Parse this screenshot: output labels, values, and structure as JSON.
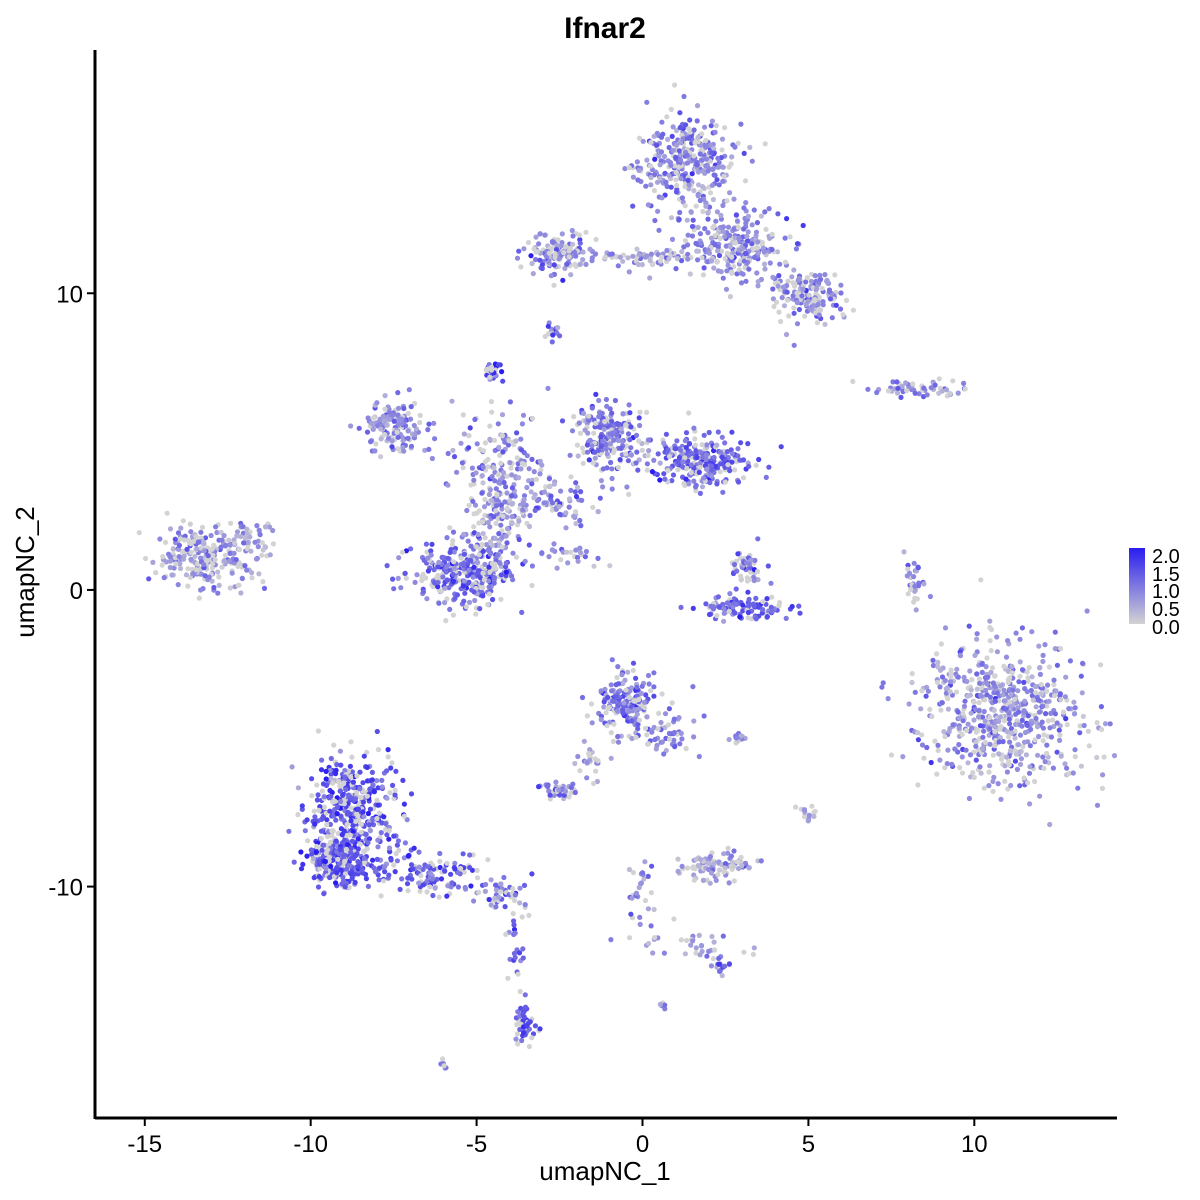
{
  "chart_data": {
    "type": "scatter",
    "title": "Ifnar2",
    "xlabel": "umapNC_1",
    "ylabel": "umapNC_2",
    "xlim": [
      -16.5,
      14.3
    ],
    "ylim": [
      -17.8,
      18.2
    ],
    "xticks": [
      -15,
      -10,
      -5,
      0,
      5,
      10
    ],
    "xtick_labels": [
      "-15",
      "-10",
      "-5",
      "0",
      "5",
      "10"
    ],
    "yticks": [
      -10,
      0,
      10
    ],
    "ytick_labels": [
      "-10",
      "0",
      "10"
    ],
    "grid": false,
    "legend": {
      "position": "right",
      "type": "colorbar",
      "min": 0.0,
      "max": 2.0,
      "labels": [
        "2.0",
        "1.5",
        "1.0",
        "0.5",
        "0.0"
      ],
      "low_color": "#d3d3d3",
      "high_color": "#2a1df0"
    },
    "point_color_low": "#d3d3d3",
    "point_color_high": "#2a1df0",
    "clusters": [
      {
        "x": 1.3,
        "y": 14.4,
        "count": 330,
        "sx": 0.95,
        "sy": 1.0,
        "mean_expr": 0.85
      },
      {
        "x": 2.8,
        "y": 11.6,
        "count": 240,
        "sx": 1.0,
        "sy": 0.75,
        "mean_expr": 0.85
      },
      {
        "x": 5.0,
        "y": 9.9,
        "count": 160,
        "sx": 0.65,
        "sy": 0.55,
        "mean_expr": 0.8
      },
      {
        "x": -2.5,
        "y": 11.4,
        "count": 130,
        "sx": 0.6,
        "sy": 0.45,
        "mean_expr": 0.85
      },
      {
        "x": 0.2,
        "y": 11.2,
        "count": 80,
        "sx": 1.4,
        "sy": 0.2,
        "mean_expr": 0.6
      },
      {
        "x": -2.7,
        "y": 8.7,
        "count": 15,
        "sx": 0.15,
        "sy": 0.2,
        "mean_expr": 1.0
      },
      {
        "x": 8.2,
        "y": 6.8,
        "count": 55,
        "sx": 0.9,
        "sy": 0.18,
        "mean_expr": 0.7
      },
      {
        "x": -4.5,
        "y": 7.3,
        "count": 30,
        "sx": 0.15,
        "sy": 0.25,
        "mean_expr": 1.6
      },
      {
        "x": -7.5,
        "y": 5.5,
        "count": 140,
        "sx": 0.6,
        "sy": 0.55,
        "mean_expr": 0.8
      },
      {
        "x": -4.3,
        "y": 4.0,
        "count": 170,
        "sx": 0.9,
        "sy": 1.2,
        "mean_expr": 0.8
      },
      {
        "x": -1.0,
        "y": 5.2,
        "count": 230,
        "sx": 0.6,
        "sy": 0.7,
        "mean_expr": 1.1
      },
      {
        "x": 1.8,
        "y": 4.3,
        "count": 240,
        "sx": 0.9,
        "sy": 0.55,
        "mean_expr": 1.2
      },
      {
        "x": -2.8,
        "y": 3.0,
        "count": 90,
        "sx": 1.0,
        "sy": 0.45,
        "mean_expr": 0.8
      },
      {
        "x": -5.4,
        "y": 0.6,
        "count": 330,
        "sx": 0.95,
        "sy": 0.75,
        "mean_expr": 1.15
      },
      {
        "x": -4.3,
        "y": 2.3,
        "count": 80,
        "sx": 0.5,
        "sy": 0.8,
        "mean_expr": 0.8
      },
      {
        "x": -2.0,
        "y": 1.2,
        "count": 25,
        "sx": 0.6,
        "sy": 0.3,
        "mean_expr": 0.7
      },
      {
        "x": -13.2,
        "y": 1.1,
        "count": 240,
        "sx": 0.95,
        "sy": 0.65,
        "mean_expr": 0.7
      },
      {
        "x": -11.8,
        "y": 1.6,
        "count": 40,
        "sx": 0.4,
        "sy": 0.45,
        "mean_expr": 0.5
      },
      {
        "x": 3.2,
        "y": 0.7,
        "count": 50,
        "sx": 0.35,
        "sy": 0.45,
        "mean_expr": 1.0
      },
      {
        "x": 3.0,
        "y": -0.6,
        "count": 110,
        "sx": 0.85,
        "sy": 0.25,
        "mean_expr": 1.25
      },
      {
        "x": 8.2,
        "y": 0.1,
        "count": 30,
        "sx": 0.2,
        "sy": 0.6,
        "mean_expr": 0.7
      },
      {
        "x": 10.9,
        "y": -4.2,
        "count": 620,
        "sx": 1.55,
        "sy": 1.5,
        "mean_expr": 0.8
      },
      {
        "x": -0.6,
        "y": -3.8,
        "count": 180,
        "sx": 0.5,
        "sy": 0.6,
        "mean_expr": 1.0
      },
      {
        "x": 0.6,
        "y": -4.8,
        "count": 60,
        "sx": 0.6,
        "sy": 0.45,
        "mean_expr": 0.9
      },
      {
        "x": -1.6,
        "y": -5.8,
        "count": 25,
        "sx": 0.3,
        "sy": 0.45,
        "mean_expr": 0.7
      },
      {
        "x": -2.5,
        "y": -6.8,
        "count": 45,
        "sx": 0.35,
        "sy": 0.18,
        "mean_expr": 0.8
      },
      {
        "x": 2.8,
        "y": -5.0,
        "count": 12,
        "sx": 0.2,
        "sy": 0.1,
        "mean_expr": 0.7
      },
      {
        "x": 5.0,
        "y": -7.5,
        "count": 14,
        "sx": 0.2,
        "sy": 0.2,
        "mean_expr": 0.5
      },
      {
        "x": 2.3,
        "y": -9.3,
        "count": 90,
        "sx": 0.6,
        "sy": 0.35,
        "mean_expr": 0.6
      },
      {
        "x": -8.7,
        "y": -7.5,
        "count": 420,
        "sx": 0.9,
        "sy": 1.2,
        "mean_expr": 1.35
      },
      {
        "x": -9.2,
        "y": -9.2,
        "count": 220,
        "sx": 0.6,
        "sy": 0.55,
        "mean_expr": 1.35
      },
      {
        "x": -6.2,
        "y": -9.6,
        "count": 120,
        "sx": 1.0,
        "sy": 0.45,
        "mean_expr": 1.3
      },
      {
        "x": -4.3,
        "y": -10.2,
        "count": 40,
        "sx": 0.4,
        "sy": 0.3,
        "mean_expr": 1.0
      },
      {
        "x": -3.8,
        "y": -12.2,
        "count": 25,
        "sx": 0.2,
        "sy": 1.1,
        "mean_expr": 1.1
      },
      {
        "x": -3.5,
        "y": -14.7,
        "count": 50,
        "sx": 0.2,
        "sy": 0.45,
        "mean_expr": 1.5
      },
      {
        "x": -0.1,
        "y": -10.0,
        "count": 30,
        "sx": 0.25,
        "sy": 0.8,
        "mean_expr": 0.9
      },
      {
        "x": 1.4,
        "y": -12.0,
        "count": 35,
        "sx": 1.0,
        "sy": 0.3,
        "mean_expr": 0.7
      },
      {
        "x": 2.4,
        "y": -12.7,
        "count": 15,
        "sx": 0.2,
        "sy": 0.2,
        "mean_expr": 1.1
      },
      {
        "x": 0.6,
        "y": -14.0,
        "count": 5,
        "sx": 0.1,
        "sy": 0.1,
        "mean_expr": 1.0
      },
      {
        "x": -6.0,
        "y": -16.0,
        "count": 6,
        "sx": 0.1,
        "sy": 0.1,
        "mean_expr": 1.0
      }
    ]
  }
}
